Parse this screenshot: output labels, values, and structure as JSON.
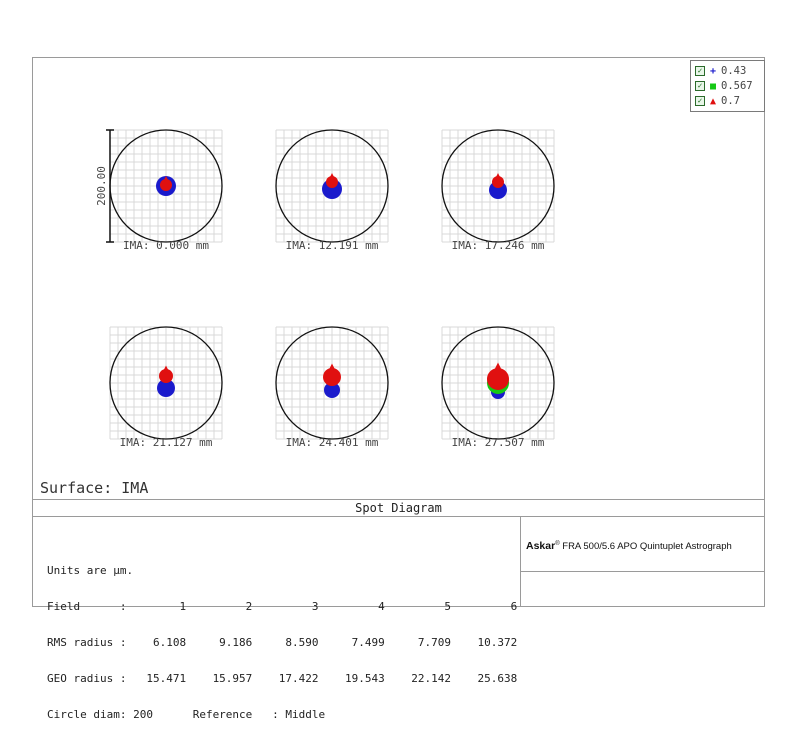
{
  "chart_data": {
    "type": "scatter",
    "title": "Spot Diagram",
    "surface_label": "Surface: IMA",
    "scale_bar_label": "200.00",
    "legend": [
      {
        "label": "0.43",
        "color": "#1a1acc",
        "marker": "plus",
        "checked": true
      },
      {
        "label": "0.567",
        "color": "#14c814",
        "marker": "square",
        "checked": true
      },
      {
        "label": "0.7",
        "color": "#e01010",
        "marker": "triangle",
        "checked": true
      }
    ],
    "fields": [
      {
        "label": "IMA: 0.000 mm",
        "field": 1
      },
      {
        "label": "IMA: 12.191 mm",
        "field": 2
      },
      {
        "label": "IMA: 17.246 mm",
        "field": 3
      },
      {
        "label": "IMA: 21.127 mm",
        "field": 4
      },
      {
        "label": "IMA: 24.401 mm",
        "field": 5
      },
      {
        "label": "IMA: 27.507 mm",
        "field": 6
      }
    ],
    "spots": [
      {
        "field": 1,
        "blob": [
          {
            "color": "#1a1acc",
            "dx": 0,
            "dy": 0,
            "r": 10
          },
          {
            "color": "#e01010",
            "dx": 0,
            "dy": -1,
            "r": 6
          }
        ]
      },
      {
        "field": 2,
        "blob": [
          {
            "color": "#1a1acc",
            "dx": 0,
            "dy": 3,
            "r": 10
          },
          {
            "color": "#e01010",
            "dx": 0,
            "dy": -4,
            "r": 6
          }
        ]
      },
      {
        "field": 3,
        "blob": [
          {
            "color": "#1a1acc",
            "dx": 0,
            "dy": 4,
            "r": 9
          },
          {
            "color": "#e01010",
            "dx": 0,
            "dy": -4,
            "r": 6
          }
        ]
      },
      {
        "field": 4,
        "blob": [
          {
            "color": "#1a1acc",
            "dx": 0,
            "dy": 5,
            "r": 9
          },
          {
            "color": "#e01010",
            "dx": 0,
            "dy": -7,
            "r": 7
          }
        ]
      },
      {
        "field": 5,
        "blob": [
          {
            "color": "#1a1acc",
            "dx": 0,
            "dy": 7,
            "r": 8
          },
          {
            "color": "#e01010",
            "dx": 0,
            "dy": -6,
            "r": 9
          }
        ]
      },
      {
        "field": 6,
        "blob": [
          {
            "color": "#1a1acc",
            "dx": 0,
            "dy": 9,
            "r": 7
          },
          {
            "color": "#14c814",
            "dx": 0,
            "dy": 0,
            "r": 11
          },
          {
            "color": "#e01010",
            "dx": 0,
            "dy": -4,
            "r": 11
          }
        ]
      }
    ],
    "units_line": "Units are µm.",
    "table": {
      "field_label": "Field",
      "rms_label": "RMS radius :",
      "geo_label": "GEO radius :",
      "fields": [
        1,
        2,
        3,
        4,
        5,
        6
      ],
      "rms_radius": [
        6.108,
        9.186,
        8.59,
        7.499,
        7.709,
        10.372
      ],
      "geo_radius": [
        15.471,
        15.957,
        17.422,
        19.543,
        22.142,
        25.638
      ]
    },
    "stats_text": [
      "Units are µm.",
      "Field      :        1         2         3         4         5         6",
      "RMS radius :    6.108     9.186     8.590     7.499     7.709    10.372",
      "GEO radius :   15.471    15.957    17.422    19.543    22.142    25.638",
      "Circle diam: 200      Reference   : Middle"
    ],
    "circle_diam": 200,
    "reference": "Middle"
  },
  "title_block": {
    "brand": "Askar",
    "trademark": "®",
    "description": " FRA 500/5.6 APO Quintuplet Astrograph"
  }
}
